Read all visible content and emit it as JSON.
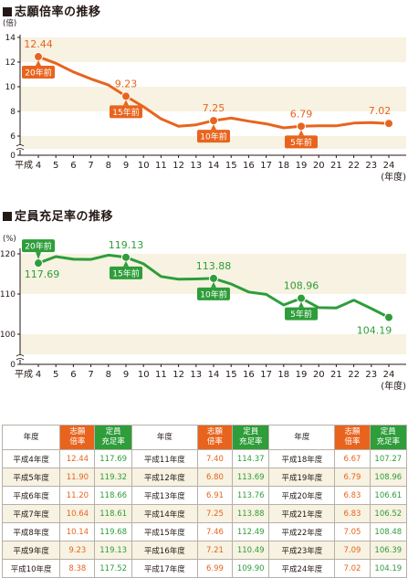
{
  "chart_data": [
    {
      "type": "line",
      "title": "志願倍率の推移",
      "unit_label": "(倍)",
      "x_prefix": "平成",
      "xlabel": "(年度)",
      "x": [
        4,
        5,
        6,
        7,
        8,
        9,
        10,
        11,
        12,
        13,
        14,
        15,
        16,
        17,
        18,
        19,
        20,
        21,
        22,
        23,
        24
      ],
      "yticks": [
        "0",
        "6",
        "8",
        "10",
        "12",
        "14"
      ],
      "ylim": [
        0,
        14
      ],
      "y_break": true,
      "grid": false,
      "series": [
        {
          "color": "#e8641e",
          "values": [
            12.44,
            11.9,
            11.2,
            10.64,
            10.14,
            9.23,
            8.38,
            7.4,
            6.8,
            6.91,
            7.25,
            7.46,
            7.21,
            6.99,
            6.67,
            6.79,
            6.83,
            6.83,
            7.05,
            7.09,
            7.02
          ]
        }
      ],
      "value_labels": [
        {
          "x": 4,
          "text": "12.44"
        },
        {
          "x": 9,
          "text": "9.23"
        },
        {
          "x": 14,
          "text": "7.25"
        },
        {
          "x": 19,
          "text": "6.79"
        },
        {
          "x": 24,
          "text": "7.02"
        }
      ],
      "callouts": [
        {
          "x": 4,
          "text": "20年前"
        },
        {
          "x": 9,
          "text": "15年前"
        },
        {
          "x": 14,
          "text": "10年前"
        },
        {
          "x": 19,
          "text": "5年前"
        }
      ]
    },
    {
      "type": "line",
      "title": "定員充足率の推移",
      "unit_label": "(%)",
      "x_prefix": "平成",
      "xlabel": "(年度)",
      "x": [
        4,
        5,
        6,
        7,
        8,
        9,
        10,
        11,
        12,
        13,
        14,
        15,
        16,
        17,
        18,
        19,
        20,
        21,
        22,
        23,
        24
      ],
      "yticks": [
        "0",
        "100",
        "110",
        "120"
      ],
      "ylim": [
        0,
        125
      ],
      "y_break": true,
      "grid": false,
      "series": [
        {
          "color": "#2e9d3a",
          "values": [
            117.69,
            119.32,
            118.66,
            118.61,
            119.68,
            119.13,
            117.52,
            114.37,
            113.69,
            113.76,
            113.88,
            112.49,
            110.49,
            109.9,
            107.27,
            108.96,
            106.61,
            106.52,
            108.48,
            106.39,
            104.19
          ]
        }
      ],
      "value_labels": [
        {
          "x": 4,
          "text": "117.69"
        },
        {
          "x": 9,
          "text": "119.13"
        },
        {
          "x": 14,
          "text": "113.88"
        },
        {
          "x": 19,
          "text": "108.96"
        },
        {
          "x": 24,
          "text": "104.19"
        }
      ],
      "callouts": [
        {
          "x": 4,
          "text": "20年前"
        },
        {
          "x": 9,
          "text": "15年前"
        },
        {
          "x": 14,
          "text": "10年前"
        },
        {
          "x": 19,
          "text": "5年前"
        }
      ]
    }
  ],
  "table": {
    "group_headers": [
      {
        "year": "年度",
        "rate": "志願\n倍率",
        "fill": "定員\n充足率"
      },
      {
        "year": "年度",
        "rate": "志願\n倍率",
        "fill": "定員\n充足率"
      },
      {
        "year": "年度",
        "rate": "志願\n倍率",
        "fill": "定員\n充足率"
      }
    ],
    "rows": [
      [
        "平成4年度",
        "12.44",
        "117.69",
        "平成11年度",
        "7.40",
        "114.37",
        "平成18年度",
        "6.67",
        "107.27"
      ],
      [
        "平成5年度",
        "11.90",
        "119.32",
        "平成12年度",
        "6.80",
        "113.69",
        "平成19年度",
        "6.79",
        "108.96"
      ],
      [
        "平成6年度",
        "11.20",
        "118.66",
        "平成13年度",
        "6.91",
        "113.76",
        "平成20年度",
        "6.83",
        "106.61"
      ],
      [
        "平成7年度",
        "10.64",
        "118.61",
        "平成14年度",
        "7.25",
        "113.88",
        "平成21年度",
        "6.83",
        "106.52"
      ],
      [
        "平成8年度",
        "10.14",
        "119.68",
        "平成15年度",
        "7.46",
        "112.49",
        "平成22年度",
        "7.05",
        "108.48"
      ],
      [
        "平成9年度",
        "9.23",
        "119.13",
        "平成16年度",
        "7.21",
        "110.49",
        "平成23年度",
        "7.09",
        "106.39"
      ],
      [
        "平成10年度",
        "8.38",
        "117.52",
        "平成17年度",
        "6.99",
        "109.90",
        "平成24年度",
        "7.02",
        "104.19"
      ]
    ]
  }
}
